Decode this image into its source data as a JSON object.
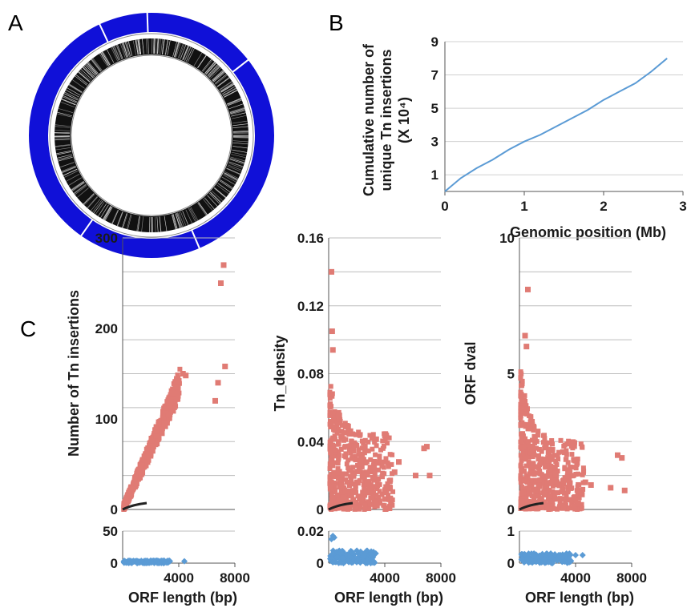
{
  "panels": {
    "a": {
      "label": "A",
      "ring_color": "#1010d8"
    },
    "b": {
      "label": "B"
    },
    "c": {
      "label": "C"
    }
  },
  "chart_data": [
    {
      "panel": "B",
      "type": "line",
      "xlabel": "Genomic position (Mb)",
      "ylabel_lines": [
        "Cumulative number of",
        "unique Tn insertions",
        "(X 10⁴)"
      ],
      "xlim": [
        0,
        3
      ],
      "ylim": [
        0,
        9
      ],
      "xticks": [
        "0",
        "1",
        "2",
        "3"
      ],
      "yticks": [
        "1",
        "3",
        "5",
        "7",
        "9"
      ],
      "grid": true,
      "color": "#5b9bd5",
      "series": [
        {
          "x": [
            0,
            0.2,
            0.4,
            0.6,
            0.8,
            1.0,
            1.2,
            1.4,
            1.6,
            1.8,
            2.0,
            2.2,
            2.4,
            2.6,
            2.8
          ],
          "y": [
            0,
            0.8,
            1.4,
            1.9,
            2.5,
            3.0,
            3.4,
            3.9,
            4.4,
            4.9,
            5.5,
            6.0,
            6.5,
            7.2,
            8.0
          ]
        }
      ]
    },
    {
      "panel": "C",
      "type": "scatter",
      "xlabel": "ORF length (bp)",
      "ylabel": "Number of Tn insertions",
      "xlim": [
        0,
        8000
      ],
      "xticks": [
        "4000",
        "8000"
      ],
      "upper": {
        "ylim": [
          0,
          300
        ],
        "yticks": [
          "0",
          "100",
          "200",
          "300"
        ],
        "color": "#e07b74",
        "points": [
          [
            7200,
            270
          ],
          [
            7000,
            250
          ],
          [
            7300,
            158
          ],
          [
            6600,
            120
          ],
          [
            6800,
            140
          ],
          [
            4500,
            148
          ],
          [
            4300,
            150
          ],
          [
            4000,
            142
          ],
          [
            3800,
            135
          ],
          [
            3600,
            128
          ],
          [
            3400,
            122
          ]
        ],
        "cloud": {
          "xmax": 4000,
          "slope": 0.034,
          "spread": 25
        }
      },
      "lower": {
        "ylim": [
          0,
          50
        ],
        "yticks": [
          "0",
          "50"
        ],
        "color": "#5b9bd5",
        "points": [
          [
            4400,
            3
          ]
        ],
        "cloud": {
          "xmax": 3300,
          "ymax": 4
        }
      }
    },
    {
      "panel": "C",
      "type": "scatter",
      "xlabel": "ORF length (bp)",
      "ylabel": "Tn_density",
      "xlim": [
        0,
        8000
      ],
      "xticks": [
        "4000",
        "8000"
      ],
      "upper": {
        "ylim": [
          0,
          0.16
        ],
        "yticks": [
          "0",
          "0.04",
          "0.08",
          "0.12",
          "0.16"
        ],
        "color": "#e07b74",
        "points": [
          [
            200,
            0.14
          ],
          [
            250,
            0.105
          ],
          [
            300,
            0.094
          ],
          [
            6800,
            0.036
          ],
          [
            7000,
            0.037
          ],
          [
            7200,
            0.02
          ],
          [
            6200,
            0.02
          ],
          [
            5000,
            0.028
          ],
          [
            4700,
            0.022
          ]
        ],
        "cloud": {
          "xmax": 4500,
          "ypeak": 0.08,
          "ybase": 0.045
        }
      },
      "lower": {
        "ylim": [
          0,
          0.02
        ],
        "yticks": [
          "0",
          "0.02"
        ],
        "color": "#5b9bd5",
        "points": [
          [
            300,
            0.017
          ],
          [
            400,
            0.016
          ],
          [
            200,
            0.015
          ]
        ],
        "cloud": {
          "xmax": 3300,
          "ymax": 0.008
        }
      }
    },
    {
      "panel": "C",
      "type": "scatter",
      "xlabel": "ORF length (bp)",
      "ylabel": "ORF dval",
      "xlim": [
        0,
        8000
      ],
      "xticks": [
        "4000",
        "8000"
      ],
      "upper": {
        "ylim": [
          0,
          10
        ],
        "yticks": [
          "0",
          "5",
          "10"
        ],
        "color": "#e07b74",
        "points": [
          [
            600,
            8.1
          ],
          [
            400,
            6.4
          ],
          [
            500,
            6.0
          ],
          [
            7000,
            2.0
          ],
          [
            7300,
            1.9
          ],
          [
            7500,
            0.7
          ],
          [
            6500,
            0.8
          ],
          [
            4700,
            1.0
          ],
          [
            5100,
            0.9
          ]
        ],
        "cloud": {
          "xmax": 4500,
          "ypeak": 5.5,
          "ybase": 2.5
        }
      },
      "lower": {
        "ylim": [
          0,
          1
        ],
        "yticks": [
          "0",
          "1"
        ],
        "color": "#5b9bd5",
        "points": [
          [
            4500,
            0.25
          ],
          [
            4000,
            0.25
          ]
        ],
        "cloud": {
          "xmax": 3600,
          "ymax": 0.3
        }
      }
    }
  ]
}
